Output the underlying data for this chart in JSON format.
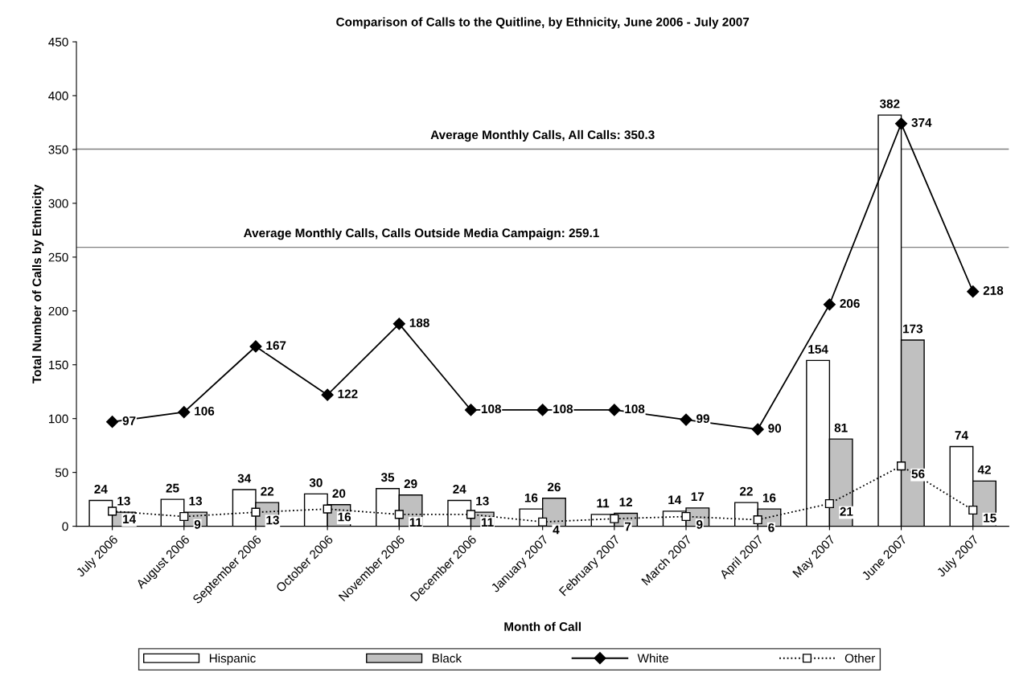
{
  "chart_data": {
    "type": "bar",
    "title": "Comparison of Calls to the Quitline, by Ethnicity, June 2006 - July 2007",
    "xlabel": "Month of Call",
    "ylabel": "Total Number of Calls by Ethnicity",
    "categories": [
      "July 2006",
      "August 2006",
      "September 2006",
      "October 2006",
      "November 2006",
      "December 2006",
      "January 2007",
      "February 2007",
      "March 2007",
      "April 2007",
      "May 2007",
      "June 2007",
      "July 2007"
    ],
    "series": [
      {
        "name": "Hispanic",
        "color": "#ffffff",
        "values": [
          24,
          25,
          34,
          30,
          35,
          24,
          16,
          11,
          14,
          22,
          154,
          382,
          74
        ]
      },
      {
        "name": "Black",
        "color": "#c0c0c0",
        "values": [
          13,
          13,
          22,
          20,
          29,
          13,
          26,
          12,
          17,
          16,
          81,
          173,
          42
        ]
      },
      {
        "name": "White",
        "type": "line",
        "color": "#000000",
        "marker": "diamond",
        "line_style": "solid",
        "values": [
          97,
          106,
          167,
          122,
          188,
          108,
          108,
          108,
          99,
          90,
          206,
          374,
          218
        ]
      },
      {
        "name": "Other",
        "type": "line",
        "color": "#000000",
        "marker": "square",
        "line_style": "dotted",
        "values": [
          14,
          9,
          13,
          16,
          11,
          11,
          4,
          7,
          9,
          6,
          21,
          56,
          15
        ]
      }
    ],
    "ylim": [
      0,
      450
    ],
    "yticks": [
      0,
      50,
      100,
      150,
      200,
      250,
      300,
      350,
      400,
      450
    ],
    "ref_lines": [
      {
        "axis": "y",
        "value": 350.3,
        "label": "Average Monthly Calls, All Calls: 350.3",
        "color": "#808080"
      },
      {
        "axis": "y",
        "value": 259.1,
        "label": "Average Monthly Calls, Calls Outside Media Campaign: 259.1",
        "color": "#808080"
      }
    ],
    "data_labels": true,
    "legend": "bottom",
    "grid": false
  }
}
